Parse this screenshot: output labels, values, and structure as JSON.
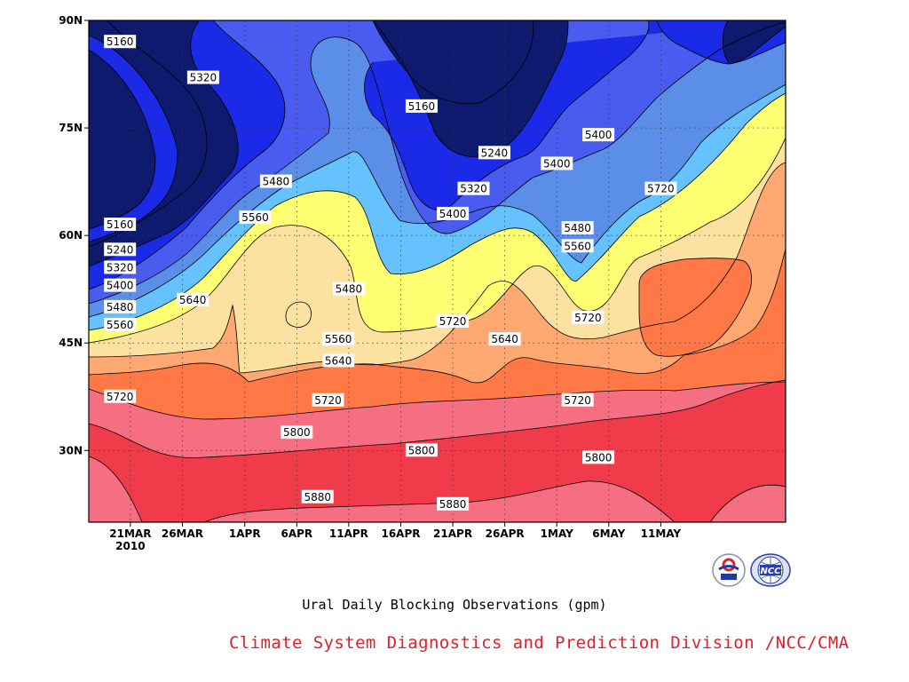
{
  "chart_data": {
    "type": "heatmap",
    "subtitle": "Ural Daily Blocking Observations (gpm)",
    "credit": "Climate System Diagnostics and Prediction Division /NCC/CMA",
    "x_ticks": [
      "21MAR",
      "26MAR",
      "1APR",
      "6APR",
      "11APR",
      "16APR",
      "21APR",
      "26APR",
      "1MAY",
      "6MAY",
      "11MAY"
    ],
    "x_year_label": "2010",
    "y_ticks": [
      "30N",
      "45N",
      "60N",
      "75N",
      "90N"
    ],
    "y_tick_values": [
      30,
      45,
      60,
      75,
      90
    ],
    "ylim": [
      20,
      90
    ],
    "grid": true,
    "contour_levels": [
      5160,
      5240,
      5320,
      5400,
      5480,
      5560,
      5640,
      5720,
      5800,
      5880
    ],
    "contour_colors": [
      "#0d1a6e",
      "#1a2ae6",
      "#4a5cf0",
      "#5b8ee6",
      "#66c2ff",
      "#ffff73",
      "#fde1a0",
      "#ffa872",
      "#ff7846",
      "#f56e82",
      "#f03c4a"
    ],
    "contour_labels": [
      {
        "date": "20MAR",
        "lat": 87,
        "value": "5160"
      },
      {
        "date": "20MAR",
        "lat": 61.5,
        "value": "5160"
      },
      {
        "date": "20MAR",
        "lat": 58,
        "value": "5240"
      },
      {
        "date": "20MAR",
        "lat": 55.5,
        "value": "5320"
      },
      {
        "date": "20MAR",
        "lat": 53,
        "value": "5400"
      },
      {
        "date": "20MAR",
        "lat": 50,
        "value": "5480"
      },
      {
        "date": "20MAR",
        "lat": 47.5,
        "value": "5560"
      },
      {
        "date": "20MAR",
        "lat": 37.5,
        "value": "5720"
      },
      {
        "date": "28MAR",
        "lat": 82,
        "value": "5320"
      },
      {
        "date": "27MAR",
        "lat": 51,
        "value": "5640"
      },
      {
        "date": "4APR",
        "lat": 67.5,
        "value": "5480"
      },
      {
        "date": "2APR",
        "lat": 62.5,
        "value": "5560"
      },
      {
        "date": "6APR",
        "lat": 32.5,
        "value": "5800"
      },
      {
        "date": "8APR",
        "lat": 23.5,
        "value": "5880"
      },
      {
        "date": "11APR",
        "lat": 52.5,
        "value": "5480"
      },
      {
        "date": "10APR",
        "lat": 45.5,
        "value": "5560"
      },
      {
        "date": "10APR",
        "lat": 42.5,
        "value": "5640"
      },
      {
        "date": "9APR",
        "lat": 37,
        "value": "5720"
      },
      {
        "date": "18APR",
        "lat": 78,
        "value": "5160"
      },
      {
        "date": "18APR",
        "lat": 30,
        "value": "5800"
      },
      {
        "date": "21APR",
        "lat": 63,
        "value": "5400"
      },
      {
        "date": "21APR",
        "lat": 48,
        "value": "5720"
      },
      {
        "date": "21APR",
        "lat": 22.5,
        "value": "5880"
      },
      {
        "date": "23APR",
        "lat": 66.5,
        "value": "5320"
      },
      {
        "date": "25APR",
        "lat": 71.5,
        "value": "5240"
      },
      {
        "date": "26APR",
        "lat": 45.5,
        "value": "5640"
      },
      {
        "date": "1MAY",
        "lat": 70,
        "value": "5400"
      },
      {
        "date": "5MAY",
        "lat": 74,
        "value": "5400"
      },
      {
        "date": "3MAY",
        "lat": 61,
        "value": "5480"
      },
      {
        "date": "3MAY",
        "lat": 58.5,
        "value": "5560"
      },
      {
        "date": "4MAY",
        "lat": 48.5,
        "value": "5720"
      },
      {
        "date": "3MAY",
        "lat": 37,
        "value": "5720"
      },
      {
        "date": "5MAY",
        "lat": 29,
        "value": "5800"
      },
      {
        "date": "11MAY",
        "lat": 66.5,
        "value": "5720"
      }
    ]
  }
}
